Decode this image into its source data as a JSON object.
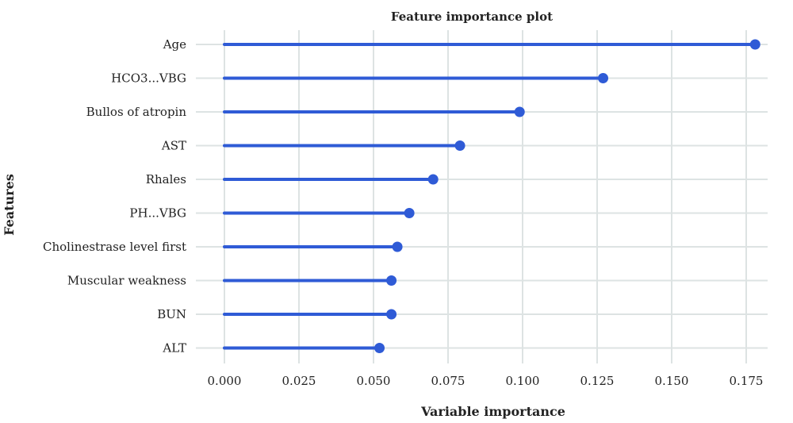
{
  "colors": {
    "mark": "#2f5bd6",
    "grid": "#dde3e3",
    "text": "#222222"
  },
  "chart_data": {
    "type": "lollipop",
    "title": "Feature importance plot",
    "xlabel": "Variable importance",
    "ylabel": "Features",
    "xlim": [
      -0.01,
      0.18
    ],
    "grid": true,
    "x_ticks": [
      0.0,
      0.025,
      0.05,
      0.075,
      0.1,
      0.125,
      0.15,
      0.175
    ],
    "x_tick_labels": [
      "0.000",
      "0.025",
      "0.050",
      "0.075",
      "0.100",
      "0.125",
      "0.150",
      "0.175"
    ],
    "categories": [
      "Age",
      "HCO3...VBG",
      "Bullos of atropin",
      "AST",
      "Rhales",
      "PH...VBG",
      "Cholinestrase level first",
      "Muscular weakness",
      "BUN",
      "ALT"
    ],
    "values": [
      0.178,
      0.127,
      0.099,
      0.079,
      0.07,
      0.062,
      0.058,
      0.056,
      0.056,
      0.052
    ]
  }
}
